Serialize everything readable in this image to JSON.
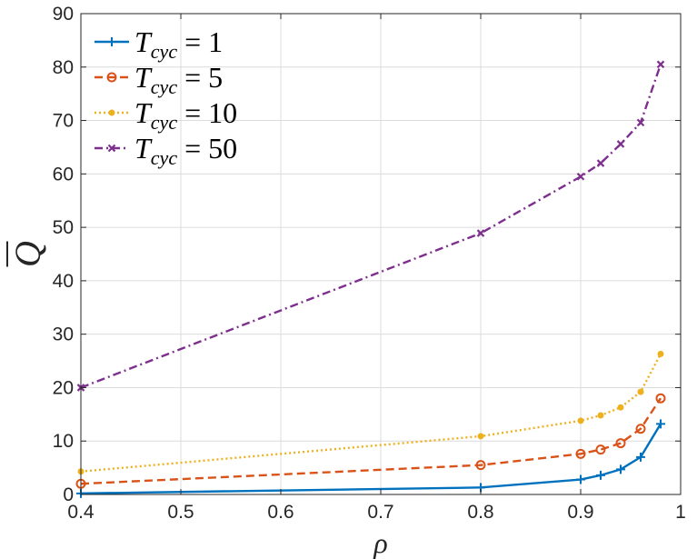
{
  "chart_data": {
    "type": "line",
    "xlabel": "ρ",
    "ylabel": "Q",
    "xlim": [
      0.4,
      1.0
    ],
    "ylim": [
      0,
      90
    ],
    "grid": true,
    "legend_position": "top-left",
    "x_ticks": [
      "0.4",
      "0.5",
      "0.6",
      "0.7",
      "0.8",
      "0.9",
      "1"
    ],
    "y_ticks": [
      "0",
      "10",
      "20",
      "30",
      "40",
      "50",
      "60",
      "70",
      "80",
      "90"
    ],
    "x": [
      0.4,
      0.8,
      0.9,
      0.92,
      0.94,
      0.96,
      0.98
    ],
    "series": [
      {
        "name": "T_cyc = 1",
        "label_main": "T",
        "label_sub": "cyc",
        "label_value": "= 1",
        "color": "#0072BD",
        "dash": "solid",
        "marker": "plus",
        "values": [
          0.2,
          1.3,
          2.8,
          3.6,
          4.7,
          7.0,
          13.2
        ]
      },
      {
        "name": "T_cyc = 5",
        "label_main": "T",
        "label_sub": "cyc",
        "label_value": "= 5",
        "color": "#D95319",
        "dash": "dashed",
        "marker": "circle",
        "values": [
          2.0,
          5.5,
          7.6,
          8.4,
          9.6,
          12.3,
          18.0
        ]
      },
      {
        "name": "T_cyc = 10",
        "label_main": "T",
        "label_sub": "cyc",
        "label_value": "= 10",
        "color": "#EDB120",
        "dash": "dotted",
        "marker": "dot",
        "values": [
          4.3,
          10.9,
          13.8,
          14.8,
          16.3,
          19.2,
          26.3
        ]
      },
      {
        "name": "T_cyc = 50",
        "label_main": "T",
        "label_sub": "cyc",
        "label_value": "= 50",
        "color": "#7E2F8E",
        "dash": "dashdot",
        "marker": "x",
        "values": [
          20.0,
          48.9,
          59.5,
          62.0,
          65.6,
          69.6,
          80.5
        ]
      }
    ]
  }
}
